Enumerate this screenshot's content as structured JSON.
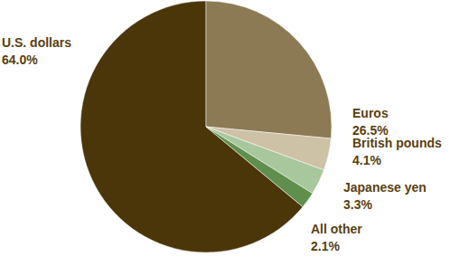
{
  "chart_data": {
    "type": "pie",
    "categories": [
      "U.S. dollars",
      "Euros",
      "British pounds",
      "Japanese yen",
      "All other"
    ],
    "values": [
      64.0,
      26.5,
      4.1,
      3.3,
      2.1
    ],
    "value_labels": [
      "64.0%",
      "26.5%",
      "4.1%",
      "3.3%",
      "2.1%"
    ],
    "colors": [
      "#4a3609",
      "#8c7a55",
      "#cdc1a6",
      "#a9c79d",
      "#5f8f4c"
    ],
    "data_labels": true
  }
}
